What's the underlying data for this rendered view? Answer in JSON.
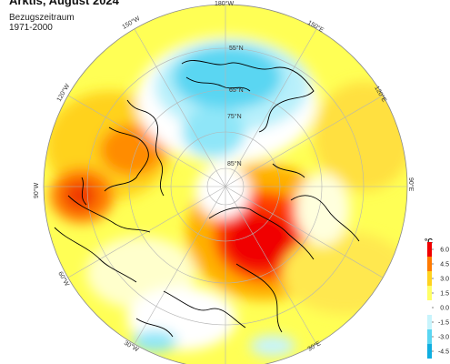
{
  "map": {
    "title": "Arktis, August 2024",
    "reference_label": "Bezugszeitraum",
    "reference_period": "1971-2000",
    "longitude_labels": [
      "180°W",
      "150°W",
      "120°W",
      "90°W",
      "60°W",
      "30°W",
      "150°E",
      "120°E",
      "90°E",
      "30°E"
    ],
    "latitude_labels": [
      "55°N",
      "65°N",
      "75°N",
      "85°N"
    ]
  },
  "legend": {
    "unit": "°C",
    "ticks": [
      "6.0",
      "4.5",
      "3.0",
      "1.5",
      "0.0",
      "-1.5",
      "-3.0",
      "-4.5"
    ],
    "colors": [
      "#f00000",
      "#ff7a00",
      "#ffd21f",
      "#ffff66",
      "#ffffff",
      "#c8f4fc",
      "#5ad6f2",
      "#0faee0"
    ]
  }
}
